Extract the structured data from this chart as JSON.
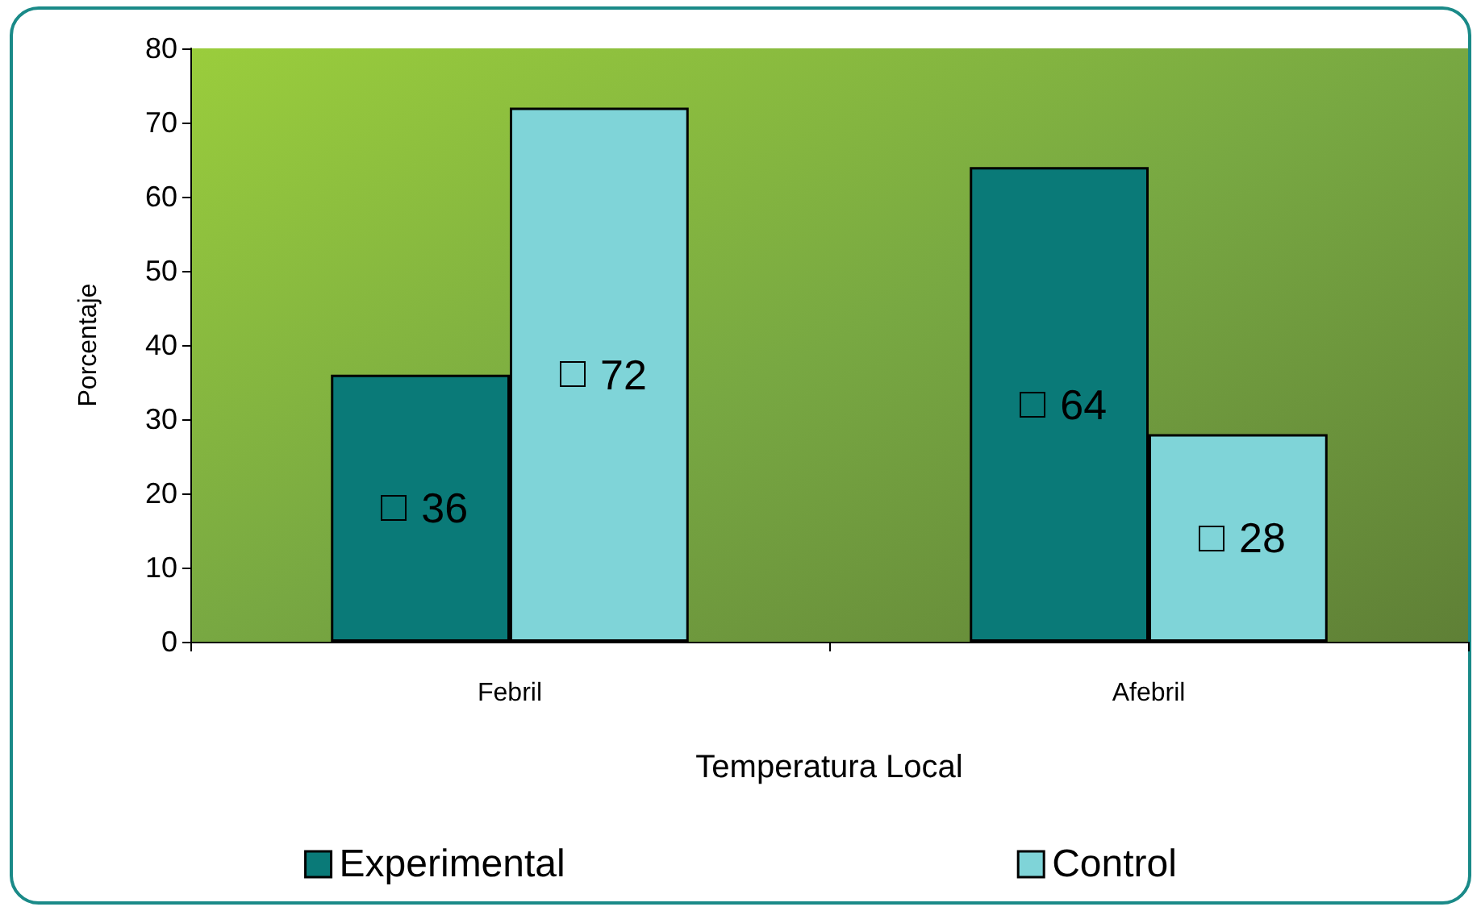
{
  "chart_data": {
    "type": "bar",
    "xlabel": "Temperatura Local",
    "ylabel": "Porcentaje",
    "categories": [
      "Febril",
      "Afebril"
    ],
    "series": [
      {
        "name": "Experimental",
        "color": "#0a7a78",
        "values": [
          36,
          64
        ]
      },
      {
        "name": "Control",
        "color": "#7fd4d8",
        "values": [
          72,
          28
        ]
      }
    ],
    "ylim": [
      0,
      80
    ],
    "yticks": [
      0,
      10,
      20,
      30,
      40,
      50,
      60,
      70,
      80
    ],
    "grid": false,
    "legend": "bottom",
    "data_labels": true
  }
}
